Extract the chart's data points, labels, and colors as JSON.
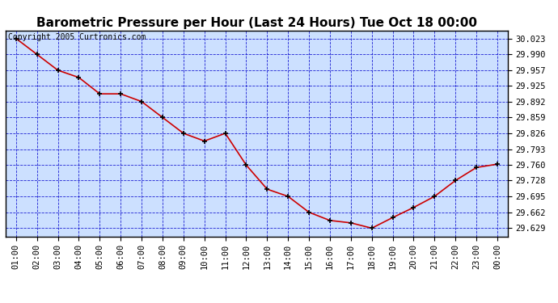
{
  "title": "Barometric Pressure per Hour (Last 24 Hours) Tue Oct 18 00:00",
  "copyright": "Copyright 2005 Curtronics.com",
  "x_labels": [
    "01:00",
    "02:00",
    "03:00",
    "04:00",
    "05:00",
    "06:00",
    "07:00",
    "08:00",
    "09:00",
    "10:00",
    "11:00",
    "12:00",
    "13:00",
    "14:00",
    "15:00",
    "16:00",
    "17:00",
    "18:00",
    "19:00",
    "20:00",
    "21:00",
    "22:00",
    "23:00",
    "00:00"
  ],
  "y_values": [
    30.023,
    29.99,
    29.957,
    29.942,
    29.908,
    29.908,
    29.892,
    29.859,
    29.826,
    29.81,
    29.826,
    29.76,
    29.71,
    29.695,
    29.662,
    29.645,
    29.64,
    29.629,
    29.651,
    29.672,
    29.695,
    29.728,
    29.755,
    29.762
  ],
  "yticks": [
    29.629,
    29.662,
    29.695,
    29.728,
    29.76,
    29.793,
    29.826,
    29.859,
    29.892,
    29.925,
    29.957,
    29.99,
    30.023
  ],
  "ylim": [
    29.612,
    30.04
  ],
  "line_color": "#cc0000",
  "marker_color": "#000000",
  "bg_color": "#cce0ff",
  "plot_bg_color": "#cce0ff",
  "grid_color": "#0000cc",
  "outer_bg": "#ffffff",
  "title_fontsize": 11,
  "tick_fontsize": 7.5,
  "copyright_fontsize": 7
}
